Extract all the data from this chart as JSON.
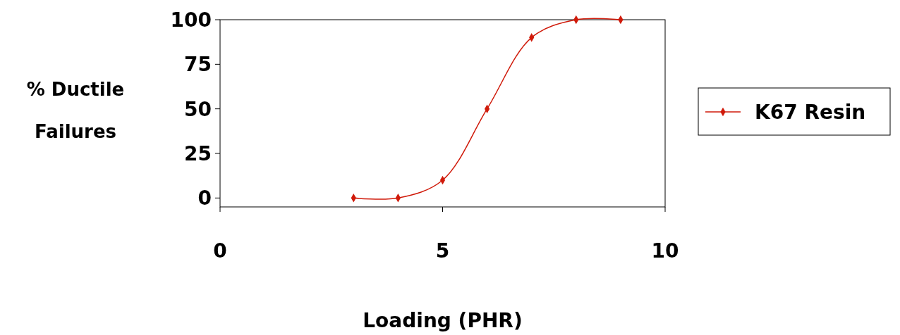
{
  "chart_data": {
    "type": "line",
    "xlabel": "Loading (PHR)",
    "ylabel": "% Ductile Failures",
    "x": [
      3,
      4,
      5,
      6,
      7,
      8,
      9
    ],
    "series": [
      {
        "name": "K67 Resin",
        "color": "#d01a0a",
        "values": [
          0,
          0,
          10,
          50,
          90,
          100,
          100
        ]
      }
    ],
    "xlim": [
      0,
      10
    ],
    "xticks": [
      0,
      5,
      10
    ],
    "ylim": [
      -5,
      100
    ],
    "yticks": [
      0,
      25,
      50,
      75,
      100
    ],
    "grid": false,
    "legend": "right",
    "marker": "diamond",
    "line_style": "solid"
  }
}
